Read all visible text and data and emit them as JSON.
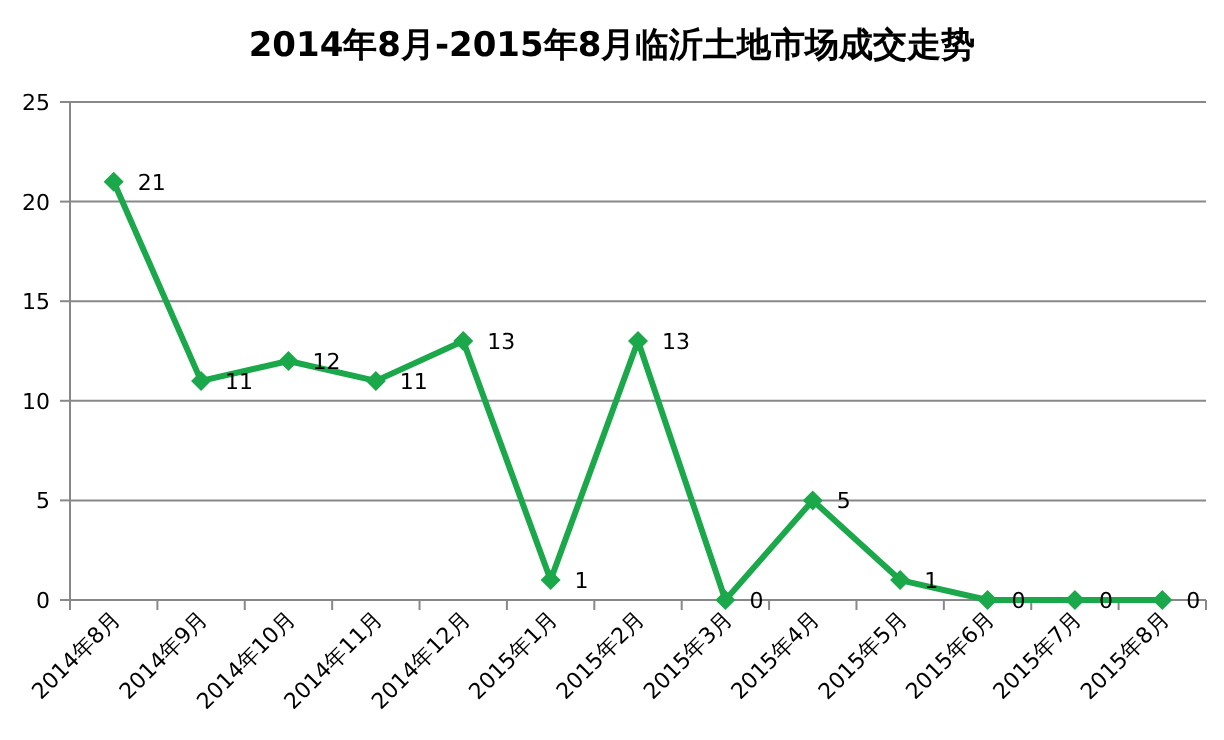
{
  "chart_data": {
    "type": "line",
    "title": "2014年8月-2015年8月临沂土地市场成交走势",
    "categories": [
      "2014年8月",
      "2014年9月",
      "2014年10月",
      "2014年11月",
      "2014年12月",
      "2015年1月",
      "2015年2月",
      "2015年3月",
      "2015年4月",
      "2015年5月",
      "2015年6月",
      "2015年7月",
      "2015年8月"
    ],
    "values": [
      21,
      11,
      12,
      11,
      13,
      1,
      13,
      0,
      5,
      1,
      0,
      0,
      0
    ],
    "color": "#1aa84a",
    "ylim": [
      0,
      25
    ],
    "yticks": [
      0,
      5,
      10,
      15,
      20,
      25
    ],
    "grid": "y",
    "marker": "diamond",
    "line_style": "solid",
    "data_labels": true
  }
}
